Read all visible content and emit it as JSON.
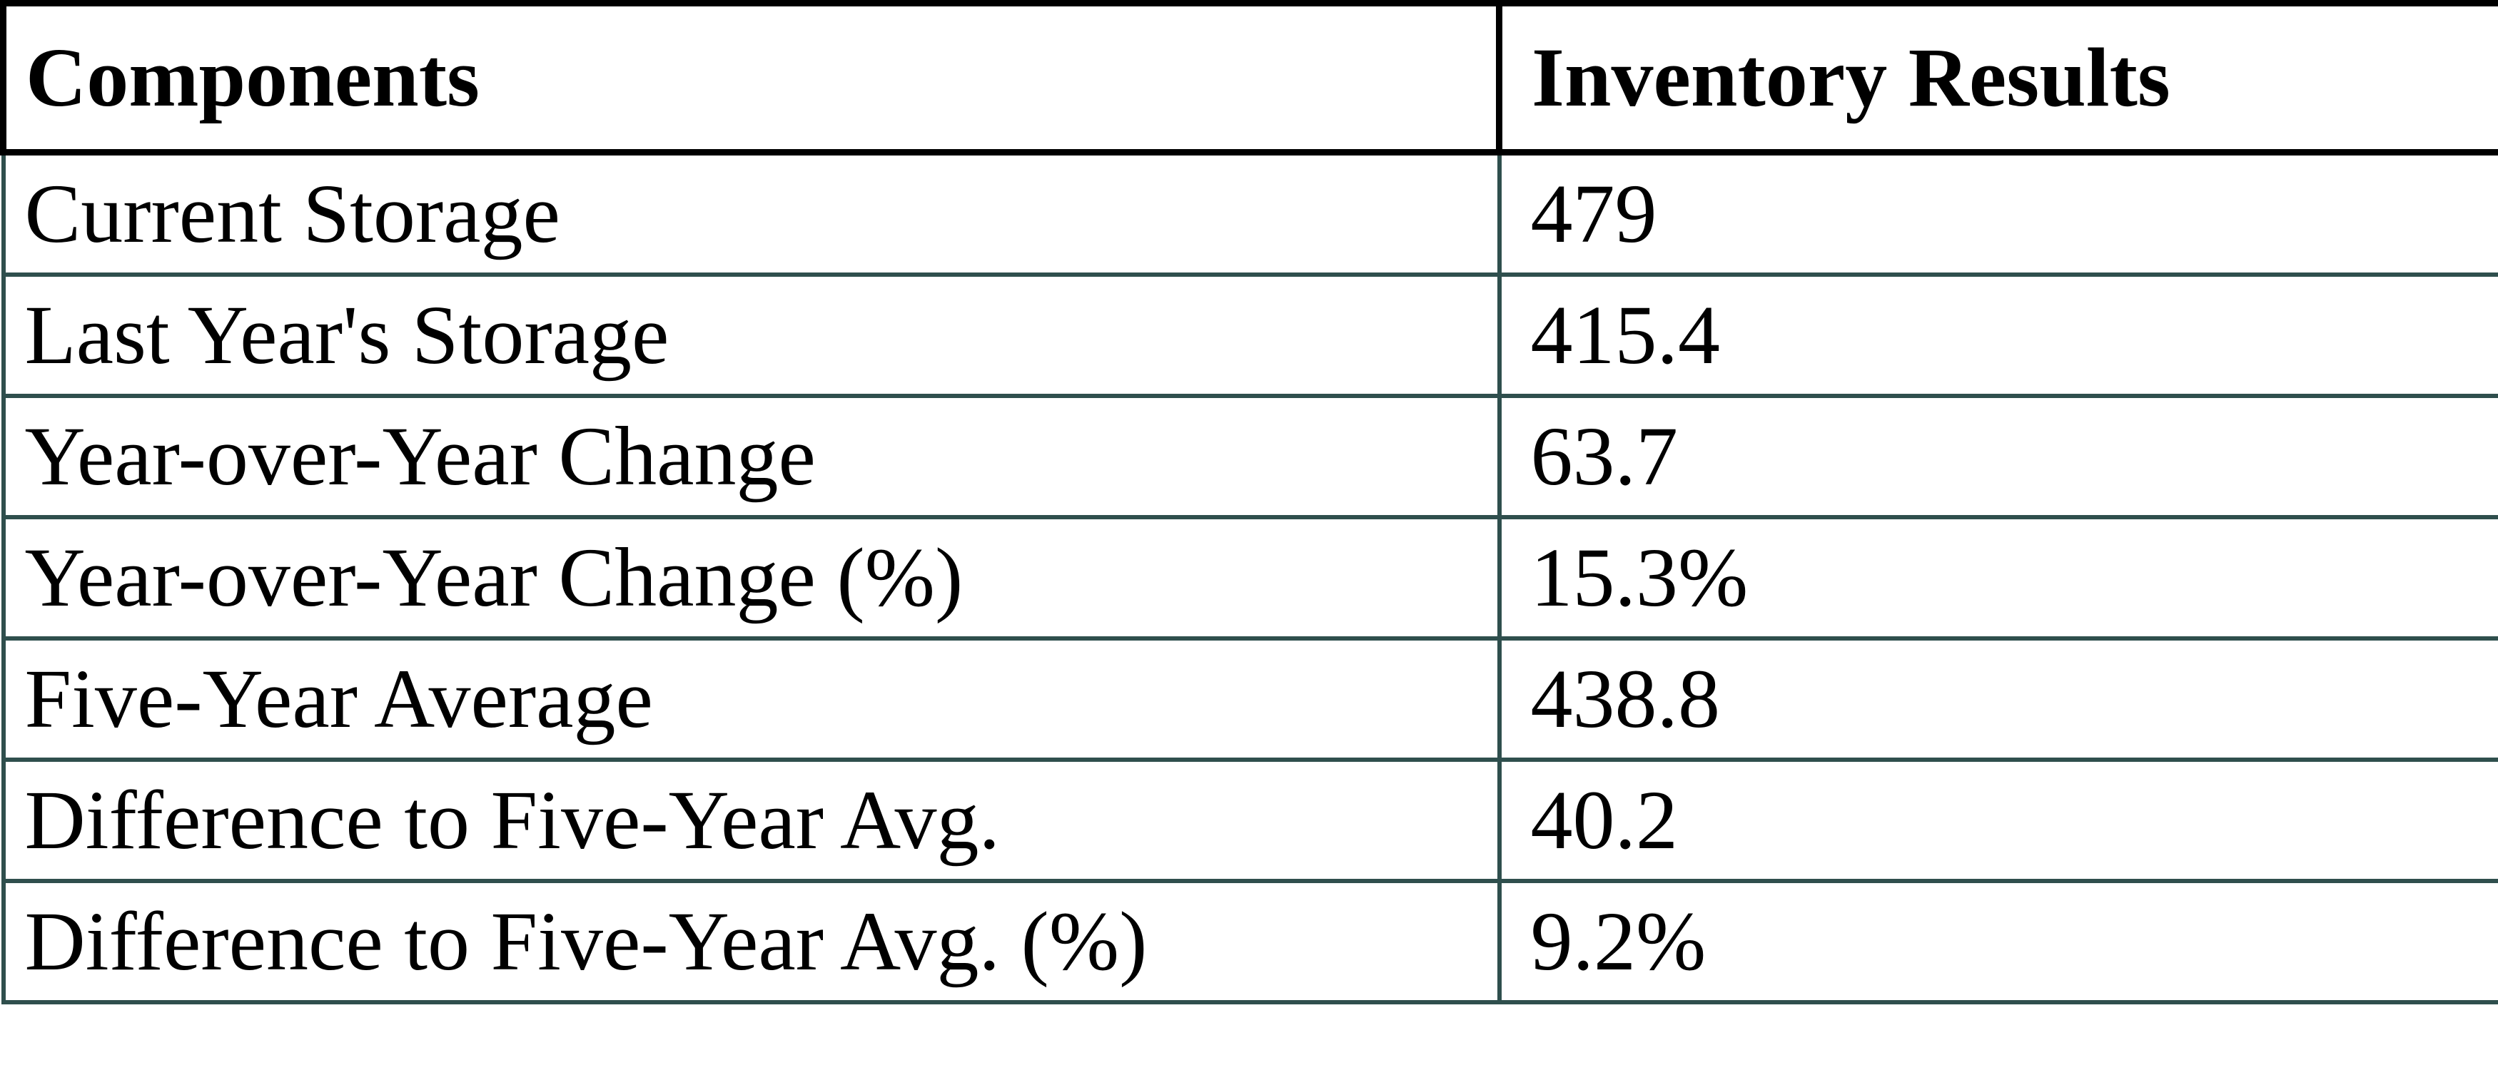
{
  "chart_data": {
    "type": "table",
    "title": "",
    "columns": [
      "Components",
      "Inventory Results"
    ],
    "rows": [
      [
        "Current Storage",
        "479"
      ],
      [
        "Last Year's Storage",
        "415.4"
      ],
      [
        "Year-over-Year Change",
        "63.7"
      ],
      [
        "Year-over-Year Change (%)",
        "15.3%"
      ],
      [
        "Five-Year Average",
        "438.8"
      ],
      [
        "Difference to Five-Year Avg.",
        "40.2"
      ],
      [
        "Difference to Five-Year Avg. (%)",
        "9.2%"
      ]
    ]
  },
  "colors": {
    "header_border": "#000000",
    "grid": "#2f4f4d",
    "text": "#000000",
    "background": "#ffffff"
  }
}
